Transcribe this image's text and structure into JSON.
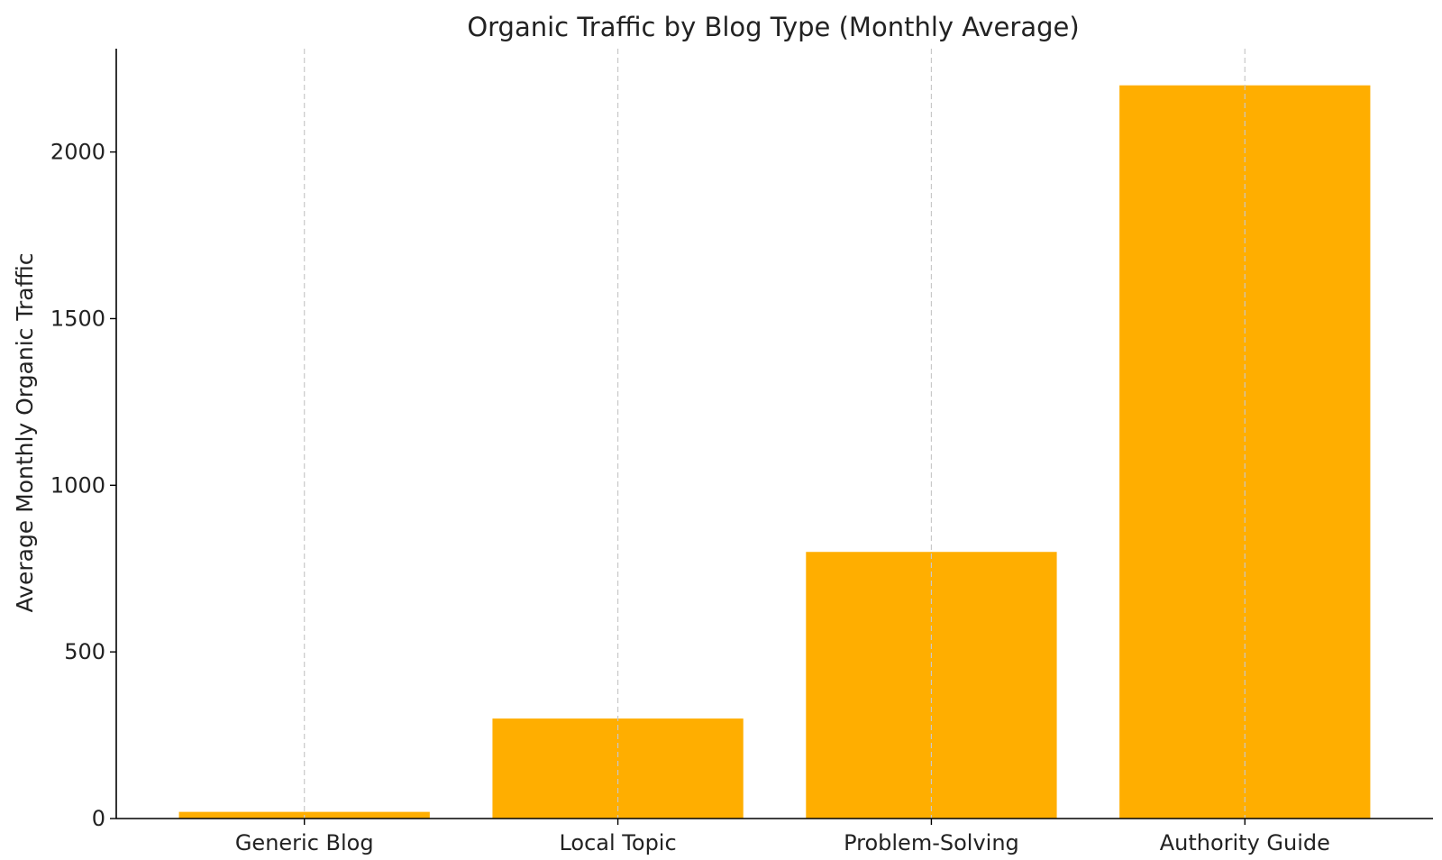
{
  "chart_data": {
    "type": "bar",
    "title": "Organic Traffic by Blog Type (Monthly Average)",
    "xlabel": "",
    "ylabel": "Average Monthly Organic Traffic",
    "categories": [
      "Generic Blog",
      "Local Topic",
      "Problem-Solving",
      "Authority Guide"
    ],
    "values": [
      20,
      300,
      800,
      2200
    ],
    "ylim": [
      0,
      2310
    ],
    "yticks": [
      0,
      500,
      1000,
      1500,
      2000
    ],
    "grid": "x-dashed",
    "bar_color": "#FFAE00",
    "grid_color": "#c8c8c8"
  }
}
